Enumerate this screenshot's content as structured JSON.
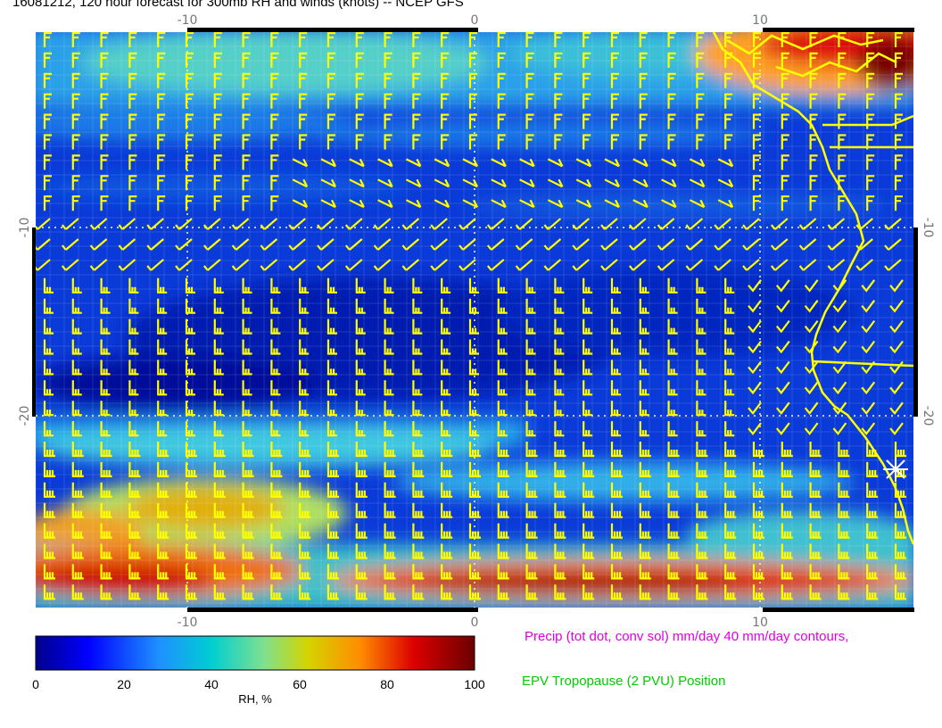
{
  "title": "16081212, 120 hour forecast for 300mb RH and winds (knots) -- NCEP GFS",
  "map": {
    "lon_ticks": [
      "-10",
      "0",
      "10"
    ],
    "lat_ticks": [
      "-10",
      "-20"
    ],
    "lon_range": [
      -15.5,
      15.5
    ],
    "lat_range": [
      -30,
      0
    ]
  },
  "colorbar": {
    "label": "RH, %",
    "ticks": [
      "0",
      "20",
      "40",
      "60",
      "80",
      "100"
    ],
    "range": [
      0,
      100
    ],
    "colors": [
      "#00008b",
      "#0000ff",
      "#1e90ff",
      "#00ced1",
      "#7fe08f",
      "#d4d400",
      "#ff8c00",
      "#dd0000",
      "#6b0000"
    ]
  },
  "legend": {
    "precip": "Precip (tot dot, conv sol) mm/day 40 mm/day contours,",
    "epv": "EPV Tropopause (2 PVU) Position"
  },
  "colors": {
    "barb": "#ffff00",
    "coast": "#ffff00",
    "grid": "#ffff88",
    "precip_text": "#e000e0",
    "epv_text": "#00cc00"
  }
}
